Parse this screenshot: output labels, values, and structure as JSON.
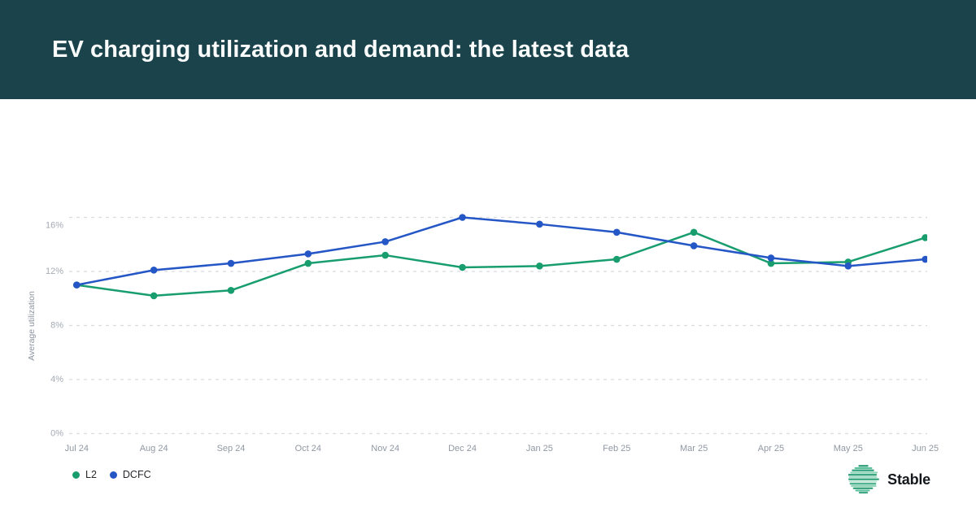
{
  "header": {
    "title": "EV charging utilization and demand: the latest data",
    "bg_color": "#1b434c",
    "text_color": "#fbfcfc"
  },
  "chart_data": {
    "type": "line",
    "ylabel": "Average utilization",
    "xlabel": "",
    "categories": [
      "Jul 24",
      "Aug 24",
      "Sep 24",
      "Oct 24",
      "Nov 24",
      "Dec 24",
      "Jan 25",
      "Feb 25",
      "Mar 25",
      "Apr 25",
      "May 25",
      "Jun 25"
    ],
    "series": [
      {
        "name": "L2",
        "color": "#189e6e",
        "values": [
          11.0,
          10.2,
          10.6,
          12.6,
          13.2,
          12.3,
          12.4,
          12.9,
          14.9,
          12.6,
          12.7,
          14.5
        ]
      },
      {
        "name": "DCFC",
        "color": "#2456c5",
        "values": [
          11.0,
          12.1,
          12.6,
          13.3,
          14.2,
          16.0,
          15.5,
          14.9,
          13.9,
          13.0,
          12.4,
          12.9
        ]
      }
    ],
    "y_tick_values": [
      0,
      4,
      8,
      12,
      16
    ],
    "y_tick_labels": [
      "0%",
      "4%",
      "8%",
      "12%",
      "16%"
    ],
    "ylim": [
      0,
      16.5
    ],
    "unit": "%",
    "grid": "horizontal-dashed",
    "legend_position": "bottom-left"
  },
  "branding": {
    "name": "Stable",
    "logo": "striped-globe-icon",
    "logo_color": "#35a37e"
  },
  "colors": {
    "grid_line": "#d9dbdf",
    "y_tick_text": "#a4aab4",
    "x_tick_text": "#9198a3",
    "axis_title_text": "#8d94a0"
  }
}
